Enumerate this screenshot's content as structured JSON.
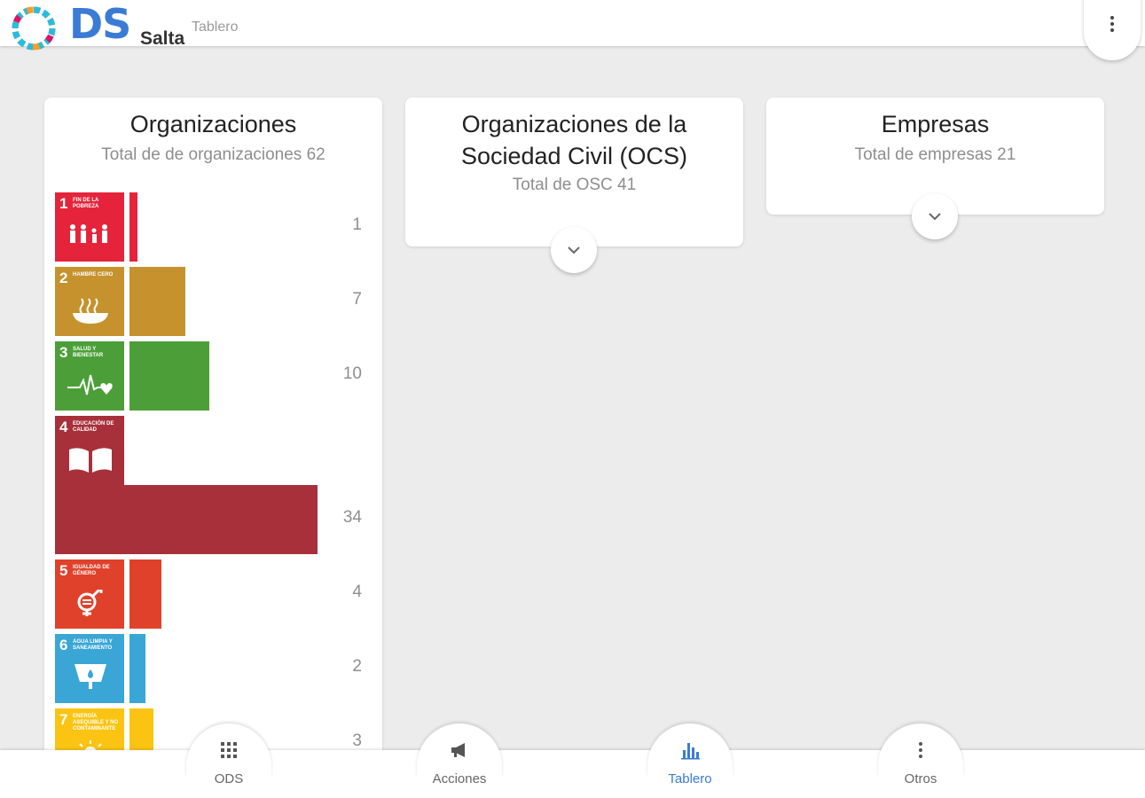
{
  "header": {
    "logo_main": "DS",
    "logo_sub": "Salta",
    "tab_title": "Tablero",
    "menu_icon": "more-vertical-icon"
  },
  "cards": [
    {
      "title": "Organizaciones",
      "subtitle": "Total de de organizaciones 62"
    },
    {
      "title_line1": "Organizaciones de la",
      "title_line2": "Sociedad Civil (OCS)",
      "subtitle": "Total de OSC 41"
    },
    {
      "title": "Empresas",
      "subtitle": "Total de empresas 21"
    }
  ],
  "chart_data": {
    "type": "bar",
    "orientation": "horizontal",
    "categories": [
      "1",
      "2",
      "3",
      "4",
      "5",
      "6",
      "7"
    ],
    "values": [
      1,
      7,
      10,
      34,
      4,
      2,
      3
    ],
    "max_value": 34,
    "colors": [
      "#e5243b",
      "#c5922d",
      "#4c9f38",
      "#a8303a",
      "#e0412b",
      "#39a6d6",
      "#fbc412"
    ],
    "icons": [
      "family-icon",
      "bowl-icon",
      "heartbeat-icon",
      "book-icon",
      "gender-icon",
      "water-icon",
      "sun-icon"
    ],
    "tile_labels": [
      "FIN DE LA POBREZA",
      "HAMBRE CERO",
      "SALUD Y BIENESTAR",
      "EDUCACIÓN DE CALIDAD",
      "IGUALDAD DE GÉNERO",
      "AGUA LIMPIA Y SANEAMIENTO",
      "ENERGÍA ASEQUIBLE Y NO CONTAMINANTE"
    ]
  },
  "nav": {
    "items": [
      {
        "label": "ODS",
        "icon": "grid-icon"
      },
      {
        "label": "Acciones",
        "icon": "megaphone-icon"
      },
      {
        "label": "Tablero",
        "icon": "bar-chart-icon"
      },
      {
        "label": "Otros",
        "icon": "more-vertical-icon"
      }
    ],
    "active": "Tablero",
    "active_color": "#3a7bd5"
  }
}
